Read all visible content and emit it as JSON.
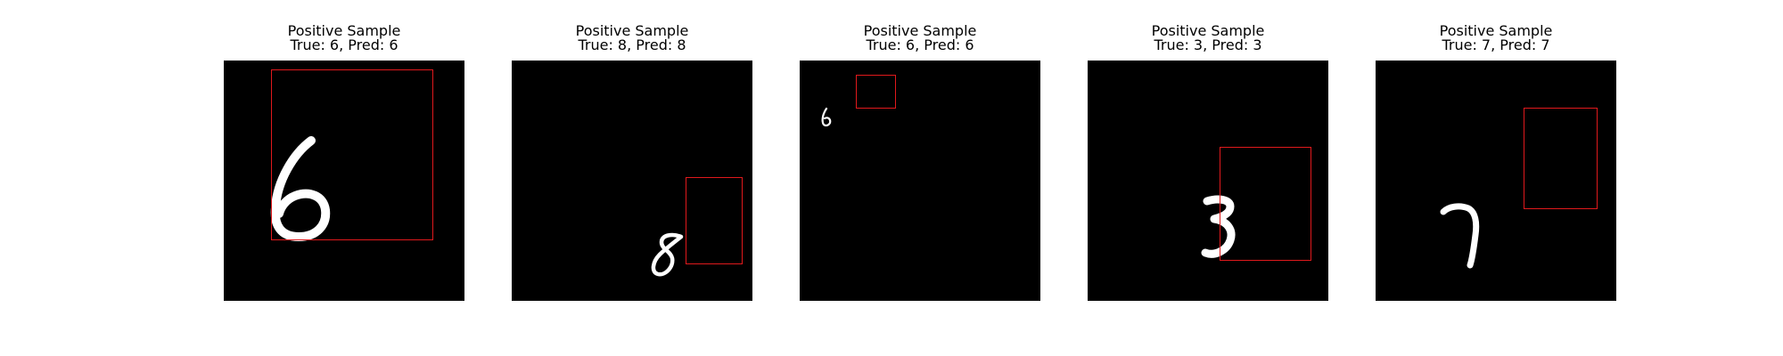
{
  "figure": {
    "box_color": "#e0191c",
    "panels": [
      {
        "title_line1": "Positive Sample",
        "title_line2": "True: 6, Pred: 6",
        "digit_icon": "handwritten-digit-6"
      },
      {
        "title_line1": "Positive Sample",
        "title_line2": "True: 8, Pred: 8",
        "digit_icon": "handwritten-digit-8"
      },
      {
        "title_line1": "Positive Sample",
        "title_line2": "True: 6, Pred: 6",
        "digit_icon": "handwritten-digit-6"
      },
      {
        "title_line1": "Positive Sample",
        "title_line2": "True: 3, Pred: 3",
        "digit_icon": "handwritten-digit-3"
      },
      {
        "title_line1": "Positive Sample",
        "title_line2": "True: 7, Pred: 7",
        "digit_icon": "handwritten-digit-7"
      }
    ]
  }
}
